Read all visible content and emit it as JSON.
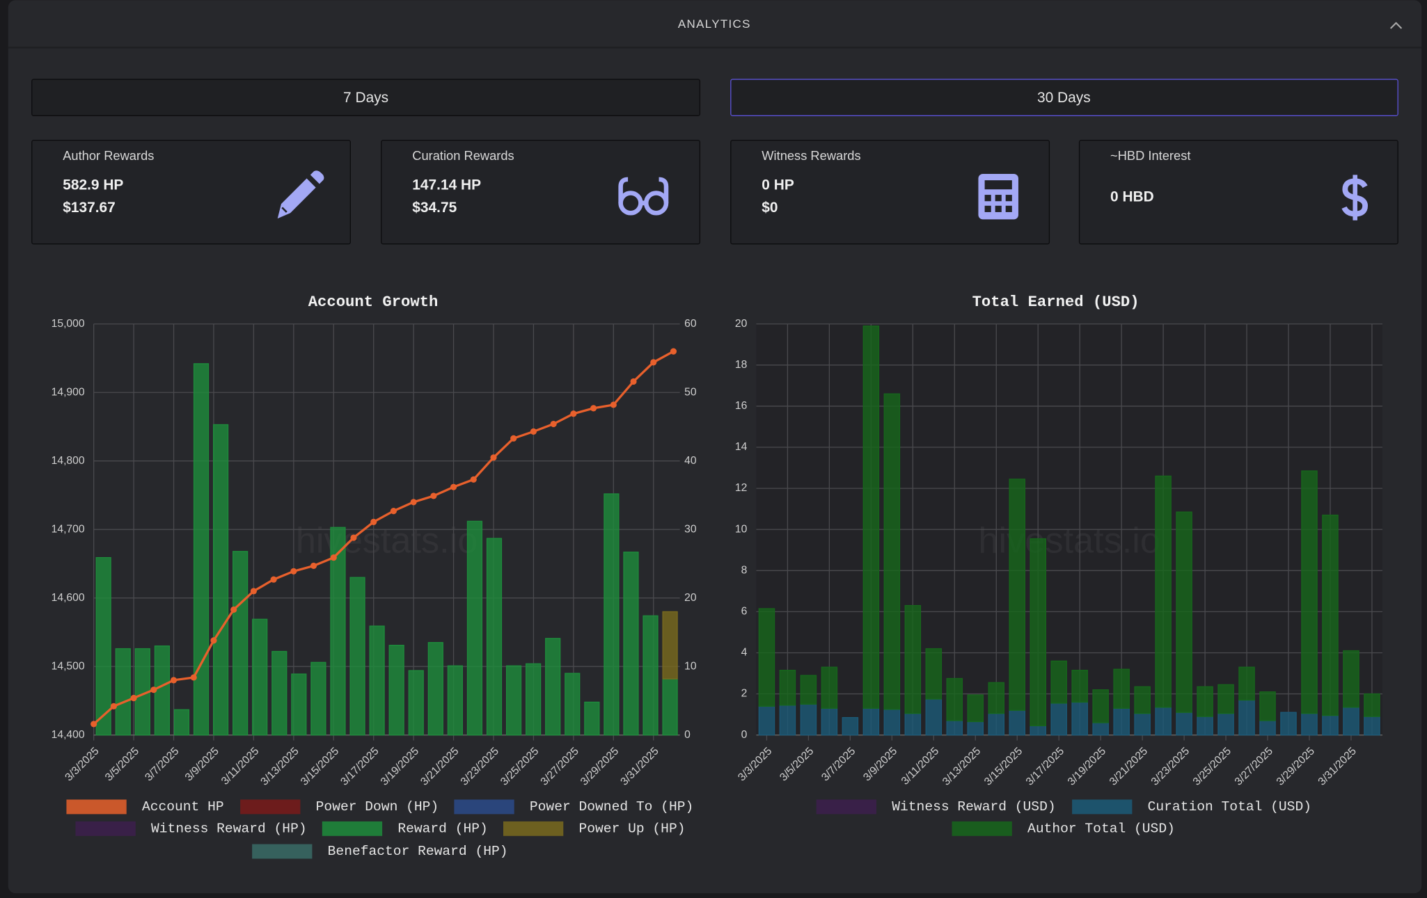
{
  "header": {
    "title": "ANALYTICS"
  },
  "buttons": [
    "7 Days",
    "30 Days"
  ],
  "cards": [
    {
      "label": "Author Rewards",
      "lines": [
        "582.9 HP",
        "$137.67"
      ]
    },
    {
      "label": "Curation Rewards",
      "lines": [
        "147.14 HP",
        "$34.75"
      ]
    },
    {
      "label": "Witness Rewards",
      "lines": [
        "0 HP",
        "$0"
      ]
    },
    {
      "label": "~HBD Interest",
      "lines": [
        "0 HBD"
      ]
    }
  ],
  "watermark": "hivestats.io",
  "chart_data": [
    {
      "type": "combo",
      "title": "Account Growth",
      "categories": [
        "3/3/2025",
        null,
        "3/5/2025",
        null,
        "3/7/2025",
        null,
        "3/9/2025",
        null,
        "3/11/2025",
        null,
        "3/13/2025",
        null,
        "3/15/2025",
        null,
        "3/17/2025",
        null,
        "3/19/2025",
        null,
        "3/21/2025",
        null,
        "3/23/2025",
        null,
        "3/25/2025",
        null,
        "3/27/2025",
        null,
        "3/29/2025",
        null,
        "3/31/2025",
        null
      ],
      "ylim": [
        14400,
        15000
      ],
      "yticks": [
        {
          "value": 14400,
          "label": "14,400"
        },
        {
          "value": 14500,
          "label": "14,500"
        },
        {
          "value": 14600,
          "label": "14,600"
        },
        {
          "value": 14700,
          "label": "14,700"
        },
        {
          "value": 14800,
          "label": "14,800"
        },
        {
          "value": 14900,
          "label": "14,900"
        },
        {
          "value": 15000,
          "label": "15,000"
        }
      ],
      "y2lim": [
        0,
        60
      ],
      "y2ticks": [
        0,
        10,
        20,
        30,
        40,
        50,
        60
      ],
      "grid": true,
      "stacked": true,
      "series": [
        {
          "name": "Account HP",
          "type": "line",
          "color": "#e8602c",
          "values": [
            14416,
            14442,
            14454,
            14466,
            14480,
            14484,
            14538,
            14583,
            14610,
            14627,
            14639,
            14647,
            14659,
            14688,
            14711,
            14727,
            14740,
            14749,
            14762,
            14773,
            14805,
            14833,
            14843,
            14854,
            14869,
            14877,
            14882,
            14916,
            14944,
            14960
          ]
        },
        {
          "name": "Power Down (HP)",
          "type": "bar",
          "axis": "y2",
          "color": "#7a1a1a",
          "values": [
            0,
            0,
            0,
            0,
            0,
            0,
            0,
            0,
            0,
            0,
            0,
            0,
            0,
            0,
            0,
            0,
            0,
            0,
            0,
            0,
            0,
            0,
            0,
            0,
            0,
            0,
            0,
            0,
            0,
            0
          ]
        },
        {
          "name": "Power Downed To (HP)",
          "type": "bar",
          "axis": "y2",
          "color": "#2b4a8a",
          "values": [
            0,
            0,
            0,
            0,
            0,
            0,
            0,
            0,
            0,
            0,
            0,
            0,
            0,
            0,
            0,
            0,
            0,
            0,
            0,
            0,
            0,
            0,
            0,
            0,
            0,
            0,
            0,
            0,
            0,
            0
          ]
        },
        {
          "name": "Witness Reward (HP)",
          "type": "bar",
          "axis": "y2",
          "color": "#3d1f4d",
          "values": [
            0,
            0,
            0,
            0,
            0,
            0,
            0,
            0,
            0,
            0,
            0,
            0,
            0,
            0,
            0,
            0,
            0,
            0,
            0,
            0,
            0,
            0,
            0,
            0,
            0,
            0,
            0,
            0,
            0,
            0
          ]
        },
        {
          "name": "Reward (HP)",
          "type": "bar",
          "axis": "y2",
          "color": "#1e8c3c",
          "values": [
            25.9,
            12.6,
            12.6,
            13.0,
            3.7,
            54.2,
            45.3,
            26.8,
            16.9,
            12.2,
            8.9,
            10.6,
            30.3,
            23.0,
            15.9,
            13.1,
            9.4,
            13.5,
            10.1,
            31.2,
            28.7,
            10.1,
            10.4,
            14.1,
            9.0,
            4.8,
            35.2,
            26.7,
            17.4,
            8.2
          ]
        },
        {
          "name": "Power Up (HP)",
          "type": "bar",
          "axis": "y2",
          "color": "#7a6a1e",
          "values": [
            0,
            0,
            0,
            0,
            0,
            0,
            0,
            0,
            0,
            0,
            0,
            0,
            0,
            0,
            0,
            0,
            0,
            0,
            0,
            0,
            0,
            0,
            0,
            0,
            0,
            0,
            0,
            0,
            0,
            9.8
          ]
        },
        {
          "name": "Benefactor Reward (HP)",
          "type": "bar",
          "axis": "y2",
          "color": "#3a6b66",
          "values": [
            0,
            0,
            0,
            0,
            0,
            0,
            0,
            0,
            0,
            0,
            0,
            0,
            0,
            0,
            0,
            0,
            0,
            0,
            0,
            0,
            0,
            0,
            0,
            0,
            0,
            0,
            0,
            0,
            0,
            0
          ]
        }
      ]
    },
    {
      "type": "bar",
      "title": "Total Earned (USD)",
      "categories": [
        "3/3/2025",
        null,
        "3/5/2025",
        null,
        "3/7/2025",
        null,
        "3/9/2025",
        null,
        "3/11/2025",
        null,
        "3/13/2025",
        null,
        "3/15/2025",
        null,
        "3/17/2025",
        null,
        "3/19/2025",
        null,
        "3/21/2025",
        null,
        "3/23/2025",
        null,
        "3/25/2025",
        null,
        "3/27/2025",
        null,
        "3/29/2025",
        null,
        "3/31/2025",
        null
      ],
      "ylim": [
        0,
        20
      ],
      "yticks": [
        0,
        2,
        4,
        6,
        8,
        10,
        12,
        14,
        16,
        18,
        20
      ],
      "grid": true,
      "stacked": true,
      "series": [
        {
          "name": "Witness Reward (USD)",
          "type": "bar",
          "color": "#3d1f4d",
          "values": [
            0,
            0,
            0,
            0,
            0,
            0,
            0,
            0,
            0,
            0,
            0,
            0,
            0,
            0,
            0,
            0,
            0,
            0,
            0,
            0,
            0,
            0,
            0,
            0,
            0,
            0,
            0,
            0,
            0,
            0
          ]
        },
        {
          "name": "Curation Total (USD)",
          "type": "bar",
          "color": "#1c5a78",
          "values": [
            1.4,
            1.45,
            1.5,
            1.3,
            0.85,
            1.3,
            1.25,
            1.05,
            1.75,
            0.7,
            0.65,
            1.05,
            1.2,
            0.45,
            1.55,
            1.6,
            0.6,
            1.3,
            1.05,
            1.35,
            1.1,
            0.9,
            1.05,
            1.7,
            0.7,
            1.1,
            1.05,
            0.95,
            1.35,
            0.9
          ]
        },
        {
          "name": "Author Total (USD)",
          "type": "bar",
          "color": "#17661c",
          "values": [
            4.75,
            1.7,
            1.4,
            2.0,
            0,
            18.6,
            15.35,
            5.25,
            2.45,
            2.05,
            1.3,
            1.5,
            11.25,
            9.1,
            2.05,
            1.55,
            1.6,
            1.9,
            1.3,
            11.25,
            9.75,
            1.45,
            1.4,
            1.6,
            1.4,
            0,
            11.8,
            9.75,
            2.75,
            1.1
          ]
        }
      ]
    }
  ]
}
